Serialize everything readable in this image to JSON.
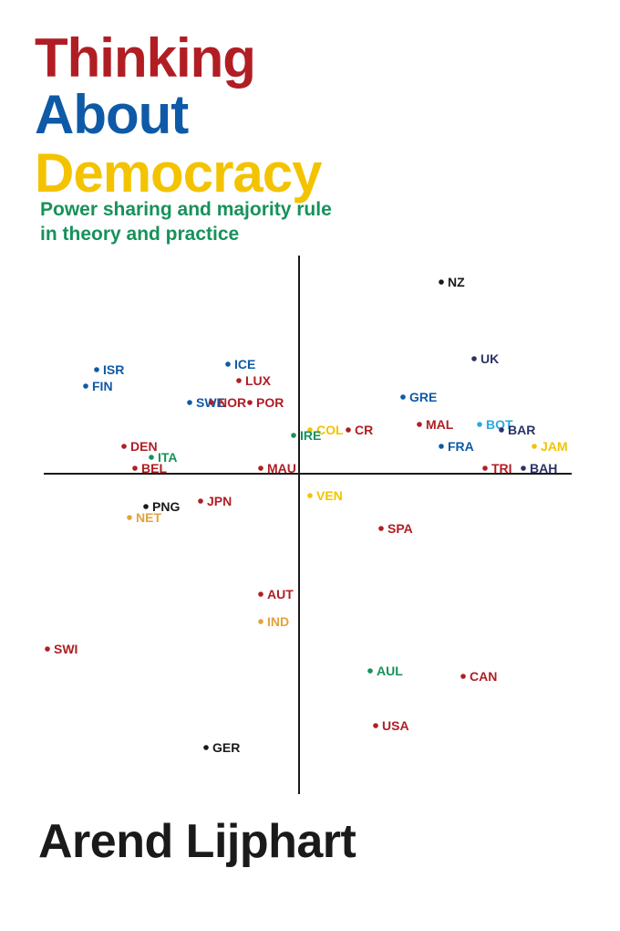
{
  "colors": {
    "red": "#b01e24",
    "blue": "#0e5aa7",
    "yellow": "#f3c300",
    "green": "#16925a",
    "black": "#1a1a1a",
    "orange": "#e3a23c",
    "navy": "#2c3366",
    "lightblue": "#2aa9e0"
  },
  "cover": {
    "title_line1": "Thinking",
    "title_line2": "About",
    "title_line3": "Democracy",
    "subtitle_line1": "Power sharing and majority rule",
    "subtitle_line2": "in theory and practice",
    "author": "Arend Lijphart"
  },
  "chart_data": {
    "type": "scatter",
    "xlim": [
      -5,
      5
    ],
    "ylim": [
      -5,
      5
    ],
    "points": [
      {
        "label": "NZ",
        "x": 2.6,
        "y": 3.5,
        "color": "black"
      },
      {
        "label": "UK",
        "x": 3.2,
        "y": 2.1,
        "color": "navy"
      },
      {
        "label": "ISR",
        "x": -3.7,
        "y": 1.9,
        "color": "blue"
      },
      {
        "label": "FIN",
        "x": -3.9,
        "y": 1.6,
        "color": "blue"
      },
      {
        "label": "ICE",
        "x": -1.3,
        "y": 2.0,
        "color": "blue"
      },
      {
        "label": "LUX",
        "x": -1.1,
        "y": 1.7,
        "color": "red"
      },
      {
        "label": "SWE",
        "x": -2.0,
        "y": 1.3,
        "color": "blue"
      },
      {
        "label": "NOR",
        "x": -1.6,
        "y": 1.3,
        "color": "red"
      },
      {
        "label": "POR",
        "x": -0.9,
        "y": 1.3,
        "color": "red"
      },
      {
        "label": "GRE",
        "x": 1.9,
        "y": 1.4,
        "color": "blue"
      },
      {
        "label": "COL",
        "x": 0.2,
        "y": 0.8,
        "color": "yellow"
      },
      {
        "label": "IRE",
        "x": -0.1,
        "y": 0.7,
        "color": "green"
      },
      {
        "label": "CR",
        "x": 0.9,
        "y": 0.8,
        "color": "red"
      },
      {
        "label": "MAL",
        "x": 2.2,
        "y": 0.9,
        "color": "red"
      },
      {
        "label": "BOT",
        "x": 3.3,
        "y": 0.9,
        "color": "lightblue"
      },
      {
        "label": "BAR",
        "x": 3.7,
        "y": 0.8,
        "color": "navy"
      },
      {
        "label": "DEN",
        "x": -3.2,
        "y": 0.5,
        "color": "red"
      },
      {
        "label": "ITA",
        "x": -2.7,
        "y": 0.3,
        "color": "green"
      },
      {
        "label": "FRA",
        "x": 2.6,
        "y": 0.5,
        "color": "blue"
      },
      {
        "label": "JAM",
        "x": 4.3,
        "y": 0.5,
        "color": "yellow"
      },
      {
        "label": "MAU",
        "x": -0.7,
        "y": 0.1,
        "color": "red"
      },
      {
        "label": "BEL",
        "x": -3.0,
        "y": 0.1,
        "color": "red"
      },
      {
        "label": "TRI",
        "x": 3.4,
        "y": 0.1,
        "color": "red"
      },
      {
        "label": "BAH",
        "x": 4.1,
        "y": 0.1,
        "color": "navy"
      },
      {
        "label": "VEN",
        "x": 0.2,
        "y": -0.4,
        "color": "yellow"
      },
      {
        "label": "JPN",
        "x": -1.8,
        "y": -0.5,
        "color": "red"
      },
      {
        "label": "PNG",
        "x": -2.8,
        "y": -0.6,
        "color": "black"
      },
      {
        "label": "NET",
        "x": -3.1,
        "y": -0.8,
        "color": "orange"
      },
      {
        "label": "SPA",
        "x": 1.5,
        "y": -1.0,
        "color": "red"
      },
      {
        "label": "AUT",
        "x": -0.7,
        "y": -2.2,
        "color": "red"
      },
      {
        "label": "IND",
        "x": -0.7,
        "y": -2.7,
        "color": "orange"
      },
      {
        "label": "SWI",
        "x": -4.6,
        "y": -3.2,
        "color": "red"
      },
      {
        "label": "AUL",
        "x": 1.3,
        "y": -3.6,
        "color": "green"
      },
      {
        "label": "CAN",
        "x": 3.0,
        "y": -3.7,
        "color": "red"
      },
      {
        "label": "USA",
        "x": 1.4,
        "y": -4.6,
        "color": "red"
      },
      {
        "label": "GER",
        "x": -1.7,
        "y": -5.0,
        "color": "black"
      }
    ]
  }
}
